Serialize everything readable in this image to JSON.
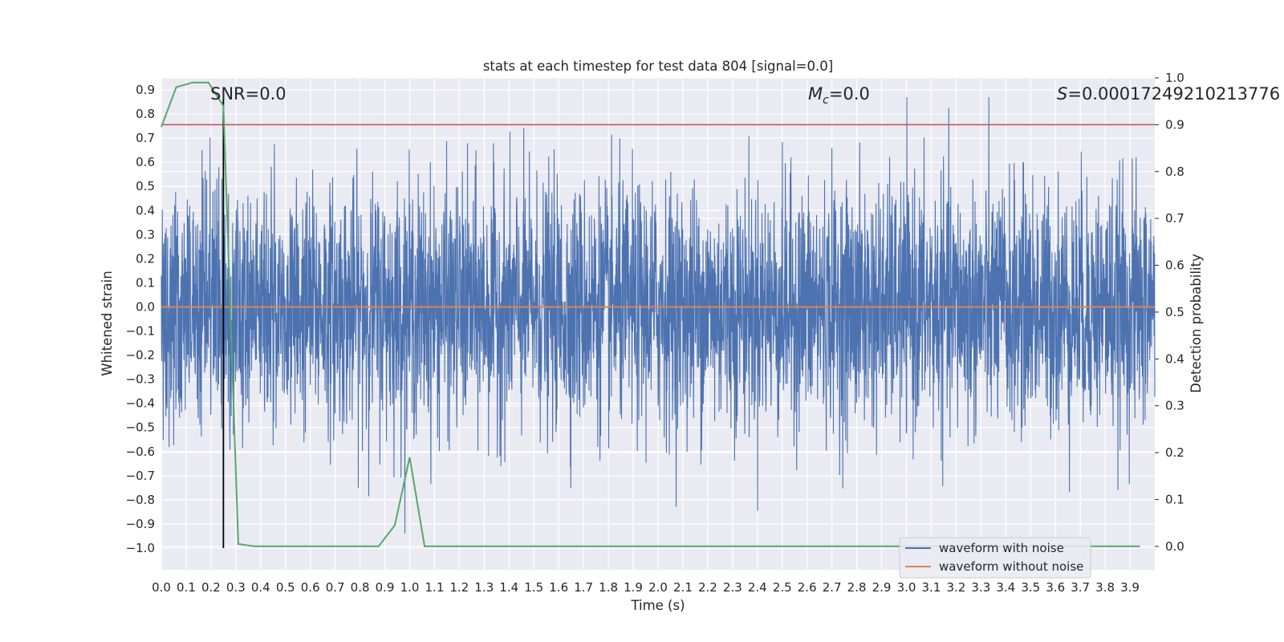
{
  "chart_data": {
    "type": "line",
    "title": "stats at each timestep for test data 804 [signal=0.0]",
    "xlabel": "Time (s)",
    "ylabel": "Whitened strain",
    "y2label": "Detection probability",
    "xlim": [
      0.0,
      4.0
    ],
    "ylim": [
      -1.09,
      0.95
    ],
    "y2lim": [
      -0.05,
      1.0
    ],
    "x_ticks": [
      "0.0",
      "0.1",
      "0.2",
      "0.3",
      "0.4",
      "0.5",
      "0.6",
      "0.7",
      "0.8",
      "0.9",
      "1.0",
      "1.1",
      "1.2",
      "1.3",
      "1.4",
      "1.5",
      "1.6",
      "1.7",
      "1.8",
      "1.9",
      "2.0",
      "2.1",
      "2.2",
      "2.3",
      "2.4",
      "2.5",
      "2.6",
      "2.7",
      "2.8",
      "2.9",
      "3.0",
      "3.1",
      "3.2",
      "3.3",
      "3.4",
      "3.5",
      "3.6",
      "3.7",
      "3.8",
      "3.9"
    ],
    "y_ticks": [
      "0.9",
      "0.8",
      "0.7",
      "0.6",
      "0.5",
      "0.4",
      "0.3",
      "0.2",
      "0.1",
      "0.0",
      "−0.1",
      "−0.2",
      "−0.3",
      "−0.4",
      "−0.5",
      "−0.6",
      "−0.7",
      "−0.8",
      "−0.9",
      "−1.0"
    ],
    "y2_ticks": [
      "1.0",
      "0.9",
      "0.8",
      "0.7",
      "0.6",
      "0.5",
      "0.4",
      "0.3",
      "0.2",
      "0.1",
      "0.0"
    ],
    "grid": true,
    "legend_position": "lower-right",
    "series": [
      {
        "name": "waveform with noise",
        "axis": "left",
        "color": "#4c72b0",
        "kind": "noise",
        "typical_amplitude": 0.25,
        "max": 0.87,
        "min": -1.0
      },
      {
        "name": "waveform without noise",
        "axis": "left",
        "color": "#dd8452",
        "x": [
          0.0,
          4.0
        ],
        "y": [
          0.0,
          0.0
        ]
      },
      {
        "axis": "right",
        "color": "#55a868",
        "x": [
          0.0,
          0.06,
          0.125,
          0.19,
          0.25,
          0.31,
          0.375,
          0.44,
          0.5,
          0.56,
          0.625,
          0.69,
          0.75,
          0.81,
          0.875,
          0.94,
          1.0,
          1.06,
          1.125,
          1.5,
          2.0,
          2.5,
          3.0,
          3.5,
          3.94
        ],
        "y": [
          0.895,
          0.98,
          0.99,
          0.99,
          0.94,
          0.005,
          0.0,
          0.0,
          0.0,
          0.0,
          0.0,
          0.0,
          0.0,
          0.0,
          0.0,
          0.045,
          0.19,
          0.0,
          0.0,
          0.0,
          0.0,
          0.0,
          0.0,
          0.0,
          0.0
        ]
      }
    ],
    "threshold": {
      "axis": "right",
      "value": 0.9,
      "color": "#c44e52"
    },
    "marker_line": {
      "x": 0.25,
      "y_from": -1.0,
      "y_to": 0.87,
      "color": "#000000"
    },
    "annotations": [
      {
        "text": "SNR=0.0",
        "x": 0.2
      },
      {
        "text": "=0.0",
        "math": "M",
        "sub": "c",
        "x": 2.6
      },
      {
        "text": "=0.00017249210213776",
        "math": "S",
        "x": 3.6
      }
    ]
  }
}
